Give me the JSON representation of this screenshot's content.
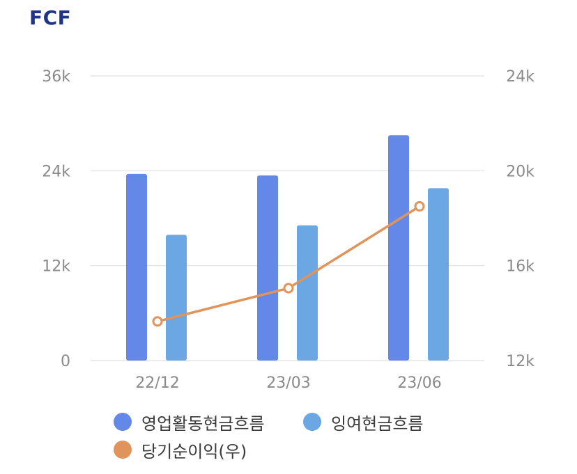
{
  "title": "FCF",
  "chart_data": {
    "type": "bar",
    "categories": [
      "22/12",
      "23/03",
      "23/06"
    ],
    "series": [
      {
        "name": "영업활동현금흐름",
        "type": "bar",
        "axis": "left",
        "color": "#6488e8",
        "values": [
          23600,
          23400,
          28500
        ]
      },
      {
        "name": "잉여현금흐름",
        "type": "bar",
        "axis": "left",
        "color": "#6aa7e3",
        "values": [
          15900,
          17100,
          21800
        ]
      },
      {
        "name": "당기순이익(우)",
        "type": "line",
        "axis": "right",
        "color": "#e0935a",
        "values": [
          13650,
          15050,
          18500
        ]
      }
    ],
    "y_left": {
      "ticks": [
        0,
        12000,
        24000,
        36000
      ],
      "tick_labels": [
        "0",
        "12k",
        "24k",
        "36k"
      ],
      "range": [
        0,
        36000
      ]
    },
    "y_right": {
      "ticks": [
        12000,
        16000,
        20000,
        24000
      ],
      "tick_labels": [
        "12k",
        "16k",
        "20k",
        "24k"
      ],
      "range": [
        12000,
        24000
      ]
    },
    "grid": true,
    "legend_position": "bottom"
  },
  "colors": {
    "title": "#1f3484",
    "grid": "#e6e6e6",
    "axis_text": "#8a8a8a"
  }
}
